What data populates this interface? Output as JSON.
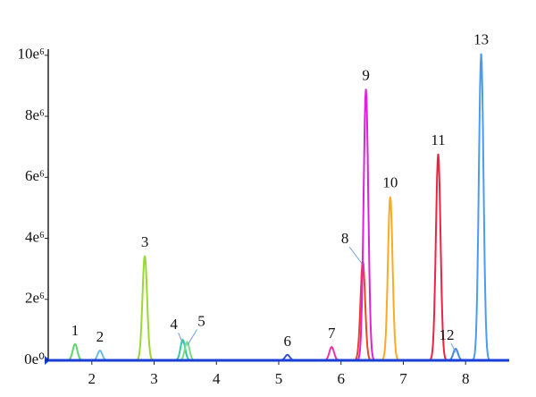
{
  "chart_data": {
    "type": "chromatogram",
    "xlim": [
      1.3,
      8.7
    ],
    "xticks": [
      2,
      3,
      4,
      5,
      6,
      7,
      8
    ],
    "ylim": [
      0,
      10200000
    ],
    "yticks": [
      {
        "value": 0,
        "label": "0e⁰"
      },
      {
        "value": 2000000,
        "label": "2e⁶"
      },
      {
        "value": 4000000,
        "label": "4e⁶"
      },
      {
        "value": 6000000,
        "label": "6e⁶"
      },
      {
        "value": 8000000,
        "label": "8e⁶"
      },
      {
        "value": 10000000,
        "label": "10e⁶"
      }
    ],
    "baseline_color": "#1a3fd6",
    "peaks": [
      {
        "label": "1",
        "x": 1.73,
        "height": 530000,
        "color": "#5fd86a"
      },
      {
        "label": "2",
        "x": 2.13,
        "height": 320000,
        "color": "#6cbbee"
      },
      {
        "label": "3",
        "x": 2.85,
        "height": 3430000,
        "color": "#9ad832"
      },
      {
        "label": "4",
        "x": 3.46,
        "height": 670000,
        "color": "#33c9a6"
      },
      {
        "label": "5",
        "x": 3.53,
        "height": 600000,
        "color": "#7fdc84"
      },
      {
        "label": "6",
        "x": 5.14,
        "height": 180000,
        "color": "#3355dd"
      },
      {
        "label": "7",
        "x": 5.85,
        "height": 440000,
        "color": "#ee33aa"
      },
      {
        "label": "8",
        "x": 6.35,
        "height": 3250000,
        "color": "#ee4422"
      },
      {
        "label": "9",
        "x": 6.4,
        "height": 8900000,
        "color": "#dd22dd"
      },
      {
        "label": "10",
        "x": 6.79,
        "height": 5370000,
        "color": "#ffaa22"
      },
      {
        "label": "11",
        "x": 7.56,
        "height": 6770000,
        "color": "#ee2244"
      },
      {
        "label": "12",
        "x": 7.84,
        "height": 380000,
        "color": "#4488dd"
      },
      {
        "label": "13",
        "x": 8.25,
        "height": 10060000,
        "color": "#4a9cf0"
      }
    ]
  }
}
